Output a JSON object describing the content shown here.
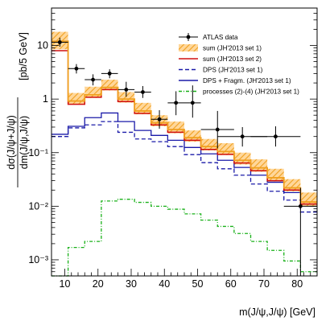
{
  "chart_data": {
    "type": "step-histogram",
    "xlabel": "m(J/ψ,J/ψ) [GeV]",
    "ylabel": "dσ(J/ψ+J/ψ)/dm(J/ψ,J/ψ) [pb/5 GeV]",
    "ylabel_parts": {
      "numerator": "dσ(J/ψ+J/ψ)",
      "denominator": "dm(J/ψ,J/ψ)",
      "unit": "[pb/5 GeV]"
    },
    "xlim": [
      6,
      86
    ],
    "ylim": [
      0.0005,
      50
    ],
    "yscale": "log",
    "x_tick_labels": [
      "10",
      "20",
      "30",
      "40",
      "50",
      "60",
      "70",
      "80"
    ],
    "y_tick_labels": [
      "10⁻³",
      "10⁻²",
      "10⁻¹",
      "1",
      "10"
    ],
    "y_tick_values": [
      0.001,
      0.01,
      0.1,
      1,
      10
    ],
    "legend": [
      {
        "name": "ATLAS data",
        "color": "#000000",
        "style": "marker"
      },
      {
        "name": "sum (JH'2013 set 1)",
        "color": "#f0a020",
        "style": "hatch"
      },
      {
        "name": "sum (JH'2013 set 2)",
        "color": "#d01010",
        "style": "solid"
      },
      {
        "name": "DPS (JH'2013 set 1)",
        "color": "#1a1aa8",
        "style": "dashed"
      },
      {
        "name": "DPS + Fragm. (JH'2013 set 1)",
        "color": "#1a1aa8",
        "style": "solid"
      },
      {
        "name": "processes (2)-(4) (JH'2013 set 1)",
        "color": "#18b018",
        "style": "dashdot"
      }
    ],
    "bin_edges": [
      6,
      11,
      16,
      21,
      26,
      31,
      36,
      41,
      46,
      51,
      56,
      61,
      66,
      71,
      76,
      81,
      86
    ],
    "series": {
      "sum_set1": {
        "values": [
          12,
          0.92,
          1.2,
          1.65,
          1.0,
          0.6,
          0.36,
          0.27,
          0.19,
          0.13,
          0.105,
          0.072,
          0.052,
          0.034,
          0.022,
          0.012
        ],
        "band_low": [
          8.5,
          0.8,
          1.05,
          1.45,
          0.86,
          0.52,
          0.31,
          0.23,
          0.16,
          0.11,
          0.09,
          0.06,
          0.044,
          0.029,
          0.019,
          0.01
        ],
        "band_high": [
          18,
          1.3,
          1.7,
          2.3,
          1.35,
          0.85,
          0.5,
          0.38,
          0.26,
          0.18,
          0.15,
          0.1,
          0.075,
          0.05,
          0.032,
          0.018
        ]
      },
      "sum_set2": {
        "values": [
          8,
          0.8,
          1.08,
          1.5,
          0.9,
          0.54,
          0.33,
          0.24,
          0.17,
          0.115,
          0.093,
          0.064,
          0.046,
          0.03,
          0.02,
          0.011
        ]
      },
      "dps": {
        "values": [
          0.2,
          0.29,
          0.33,
          0.38,
          0.24,
          0.18,
          0.16,
          0.13,
          0.092,
          0.065,
          0.05,
          0.038,
          0.026,
          0.019,
          0.013,
          0.0078
        ]
      },
      "dps_fragm": {
        "values": [
          0.22,
          0.31,
          0.45,
          0.55,
          0.38,
          0.26,
          0.21,
          0.17,
          0.125,
          0.095,
          0.072,
          0.053,
          0.038,
          0.028,
          0.018,
          0.011
        ]
      },
      "processes_2_4": {
        "values": [
          0.00036,
          0.0017,
          0.0022,
          0.0125,
          0.0135,
          0.0118,
          0.01,
          0.0088,
          0.0072,
          0.0055,
          0.0042,
          0.0031,
          0.0022,
          0.0015,
          0.00095,
          0.0006
        ]
      }
    },
    "data_points": [
      {
        "x": 8.5,
        "y": 11.5,
        "xerr": 2.5,
        "ylo": 9.5,
        "yhi": 14
      },
      {
        "x": 13.5,
        "y": 3.7,
        "xerr": 2.5,
        "ylo": 3.0,
        "yhi": 4.5
      },
      {
        "x": 18.5,
        "y": 2.3,
        "xerr": 2.5,
        "ylo": 1.8,
        "yhi": 2.9
      },
      {
        "x": 23.5,
        "y": 3.0,
        "xerr": 2.5,
        "ylo": 2.45,
        "yhi": 3.6
      },
      {
        "x": 28.5,
        "y": 1.5,
        "xerr": 2.5,
        "ylo": 1.1,
        "yhi": 2.1
      },
      {
        "x": 33.5,
        "y": 1.35,
        "xerr": 2.5,
        "ylo": 1.05,
        "yhi": 1.75
      },
      {
        "x": 38.5,
        "y": 0.42,
        "xerr": 2.5,
        "ylo": 0.28,
        "yhi": 0.62
      },
      {
        "x": 43.5,
        "y": 0.85,
        "xerr": 2.5,
        "ylo": 0.5,
        "yhi": 1.4
      },
      {
        "x": 48.5,
        "y": 0.85,
        "xerr": 2.5,
        "ylo": 0.45,
        "yhi": 1.8
      },
      {
        "x": 56.0,
        "y": 0.27,
        "xerr": 5.0,
        "ylo": 0.12,
        "yhi": 0.6
      },
      {
        "x": 63.5,
        "y": 0.2,
        "xerr": 7.5,
        "ylo": 0.13,
        "yhi": 0.3
      },
      {
        "x": 73.5,
        "y": 0.2,
        "xerr": 7.5,
        "ylo": 0.13,
        "yhi": 0.31
      },
      {
        "x": 81.0,
        "y": 0.01,
        "xerr": 5.0,
        "ylo": 0.0005,
        "yhi": 0.022
      }
    ]
  }
}
